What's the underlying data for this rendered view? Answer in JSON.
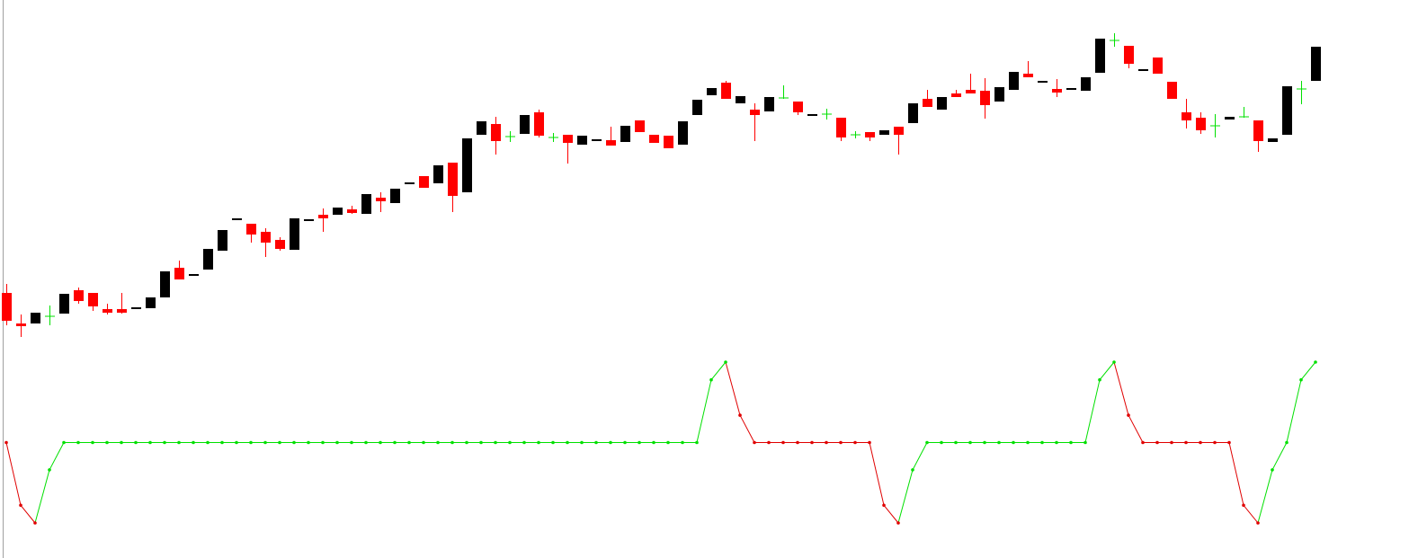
{
  "chart_data": [
    {
      "type": "candlestick",
      "open": [
        295,
        261,
        261,
        269,
        272,
        298,
        295,
        277,
        277,
        278,
        278,
        290,
        323,
        315,
        321,
        342,
        377,
        372,
        363,
        354,
        343,
        376,
        382,
        382,
        388,
        383,
        401,
        395,
        417,
        425,
        417,
        440,
        407,
        471,
        483,
        469,
        472,
        496,
        468,
        471,
        460,
        465,
        465,
        463,
        487,
        471,
        470,
        460,
        493,
        515,
        529,
        506,
        499,
        497,
        512,
        508,
        493,
        494,
        490,
        471,
        474,
        471,
        480,
        484,
        511,
        499,
        517,
        521,
        520,
        508,
        521,
        539,
        530,
        522,
        522,
        520,
        540,
        576,
        570,
        543,
        557,
        530,
        496,
        490,
        481,
        488,
        491,
        487,
        463,
        471,
        522,
        531
      ],
      "high": [
        305,
        271,
        273,
        281,
        294,
        301,
        295,
        283,
        295,
        279,
        290,
        319,
        331,
        316,
        344,
        365,
        378,
        372,
        367,
        357,
        378,
        377,
        389,
        390,
        392,
        405,
        407,
        411,
        418,
        425,
        437,
        440,
        467,
        486,
        491,
        475,
        493,
        499,
        473,
        471,
        470,
        466,
        480,
        481,
        487,
        471,
        470,
        486,
        510,
        523,
        531,
        514,
        506,
        513,
        526,
        508,
        494,
        500,
        490,
        475,
        474,
        476,
        480,
        506,
        521,
        513,
        521,
        539,
        534,
        524,
        541,
        553,
        531,
        533,
        523,
        535,
        578,
        584,
        570,
        544,
        557,
        530,
        511,
        496,
        494,
        491,
        502,
        487,
        467,
        525,
        531,
        569
      ],
      "low": [
        259,
        246,
        261,
        259,
        272,
        283,
        275,
        271,
        272,
        278,
        278,
        290,
        310,
        315,
        321,
        342,
        377,
        351,
        335,
        342,
        343,
        376,
        363,
        382,
        383,
        383,
        385,
        395,
        417,
        412,
        417,
        385,
        407,
        471,
        449,
        463,
        472,
        468,
        463,
        439,
        460,
        465,
        459,
        463,
        474,
        462,
        456,
        460,
        493,
        515,
        511,
        506,
        464,
        497,
        511,
        493,
        493,
        488,
        464,
        467,
        464,
        471,
        449,
        484,
        502,
        499,
        513,
        517,
        489,
        508,
        521,
        535,
        530,
        513,
        522,
        520,
        540,
        569,
        545,
        543,
        539,
        511,
        478,
        472,
        468,
        488,
        490,
        452,
        463,
        471,
        505,
        531
      ],
      "close": [
        264,
        258,
        273,
        269,
        294,
        286,
        280,
        273,
        273,
        279,
        290,
        319,
        310,
        316,
        344,
        365,
        378,
        360,
        351,
        344,
        378,
        377,
        378,
        390,
        384,
        405,
        397,
        411,
        418,
        412,
        437,
        403,
        467,
        486,
        464,
        469,
        493,
        470,
        468,
        462,
        470,
        466,
        459,
        481,
        474,
        462,
        456,
        486,
        510,
        523,
        511,
        514,
        493,
        513,
        512,
        496,
        494,
        494,
        468,
        471,
        468,
        476,
        471,
        506,
        502,
        513,
        513,
        517,
        504,
        524,
        541,
        535,
        531,
        518,
        523,
        535,
        578,
        576,
        550,
        544,
        539,
        511,
        487,
        476,
        481,
        491,
        491,
        464,
        467,
        525,
        522,
        569
      ],
      "up_color": "#000000",
      "down_color": "#ff0000",
      "doji_color": "#00e000",
      "ylim": [
        231,
        621
      ]
    },
    {
      "type": "line",
      "values": [
        50,
        11,
        0,
        33,
        50,
        50,
        50,
        50,
        50,
        50,
        50,
        50,
        50,
        50,
        50,
        50,
        50,
        50,
        50,
        50,
        50,
        50,
        50,
        50,
        50,
        50,
        50,
        50,
        50,
        50,
        50,
        50,
        50,
        50,
        50,
        50,
        50,
        50,
        50,
        50,
        50,
        50,
        50,
        50,
        50,
        50,
        50,
        50,
        50,
        89,
        100,
        67,
        50,
        50,
        50,
        50,
        50,
        50,
        50,
        50,
        50,
        11,
        0,
        33,
        50,
        50,
        50,
        50,
        50,
        50,
        50,
        50,
        50,
        50,
        50,
        50,
        89,
        100,
        67,
        50,
        50,
        50,
        50,
        50,
        50,
        50,
        11,
        0,
        33,
        50,
        89,
        100
      ],
      "up_color": "#00e000",
      "down_color": "#e00000",
      "ylim": [
        0,
        100
      ]
    }
  ]
}
